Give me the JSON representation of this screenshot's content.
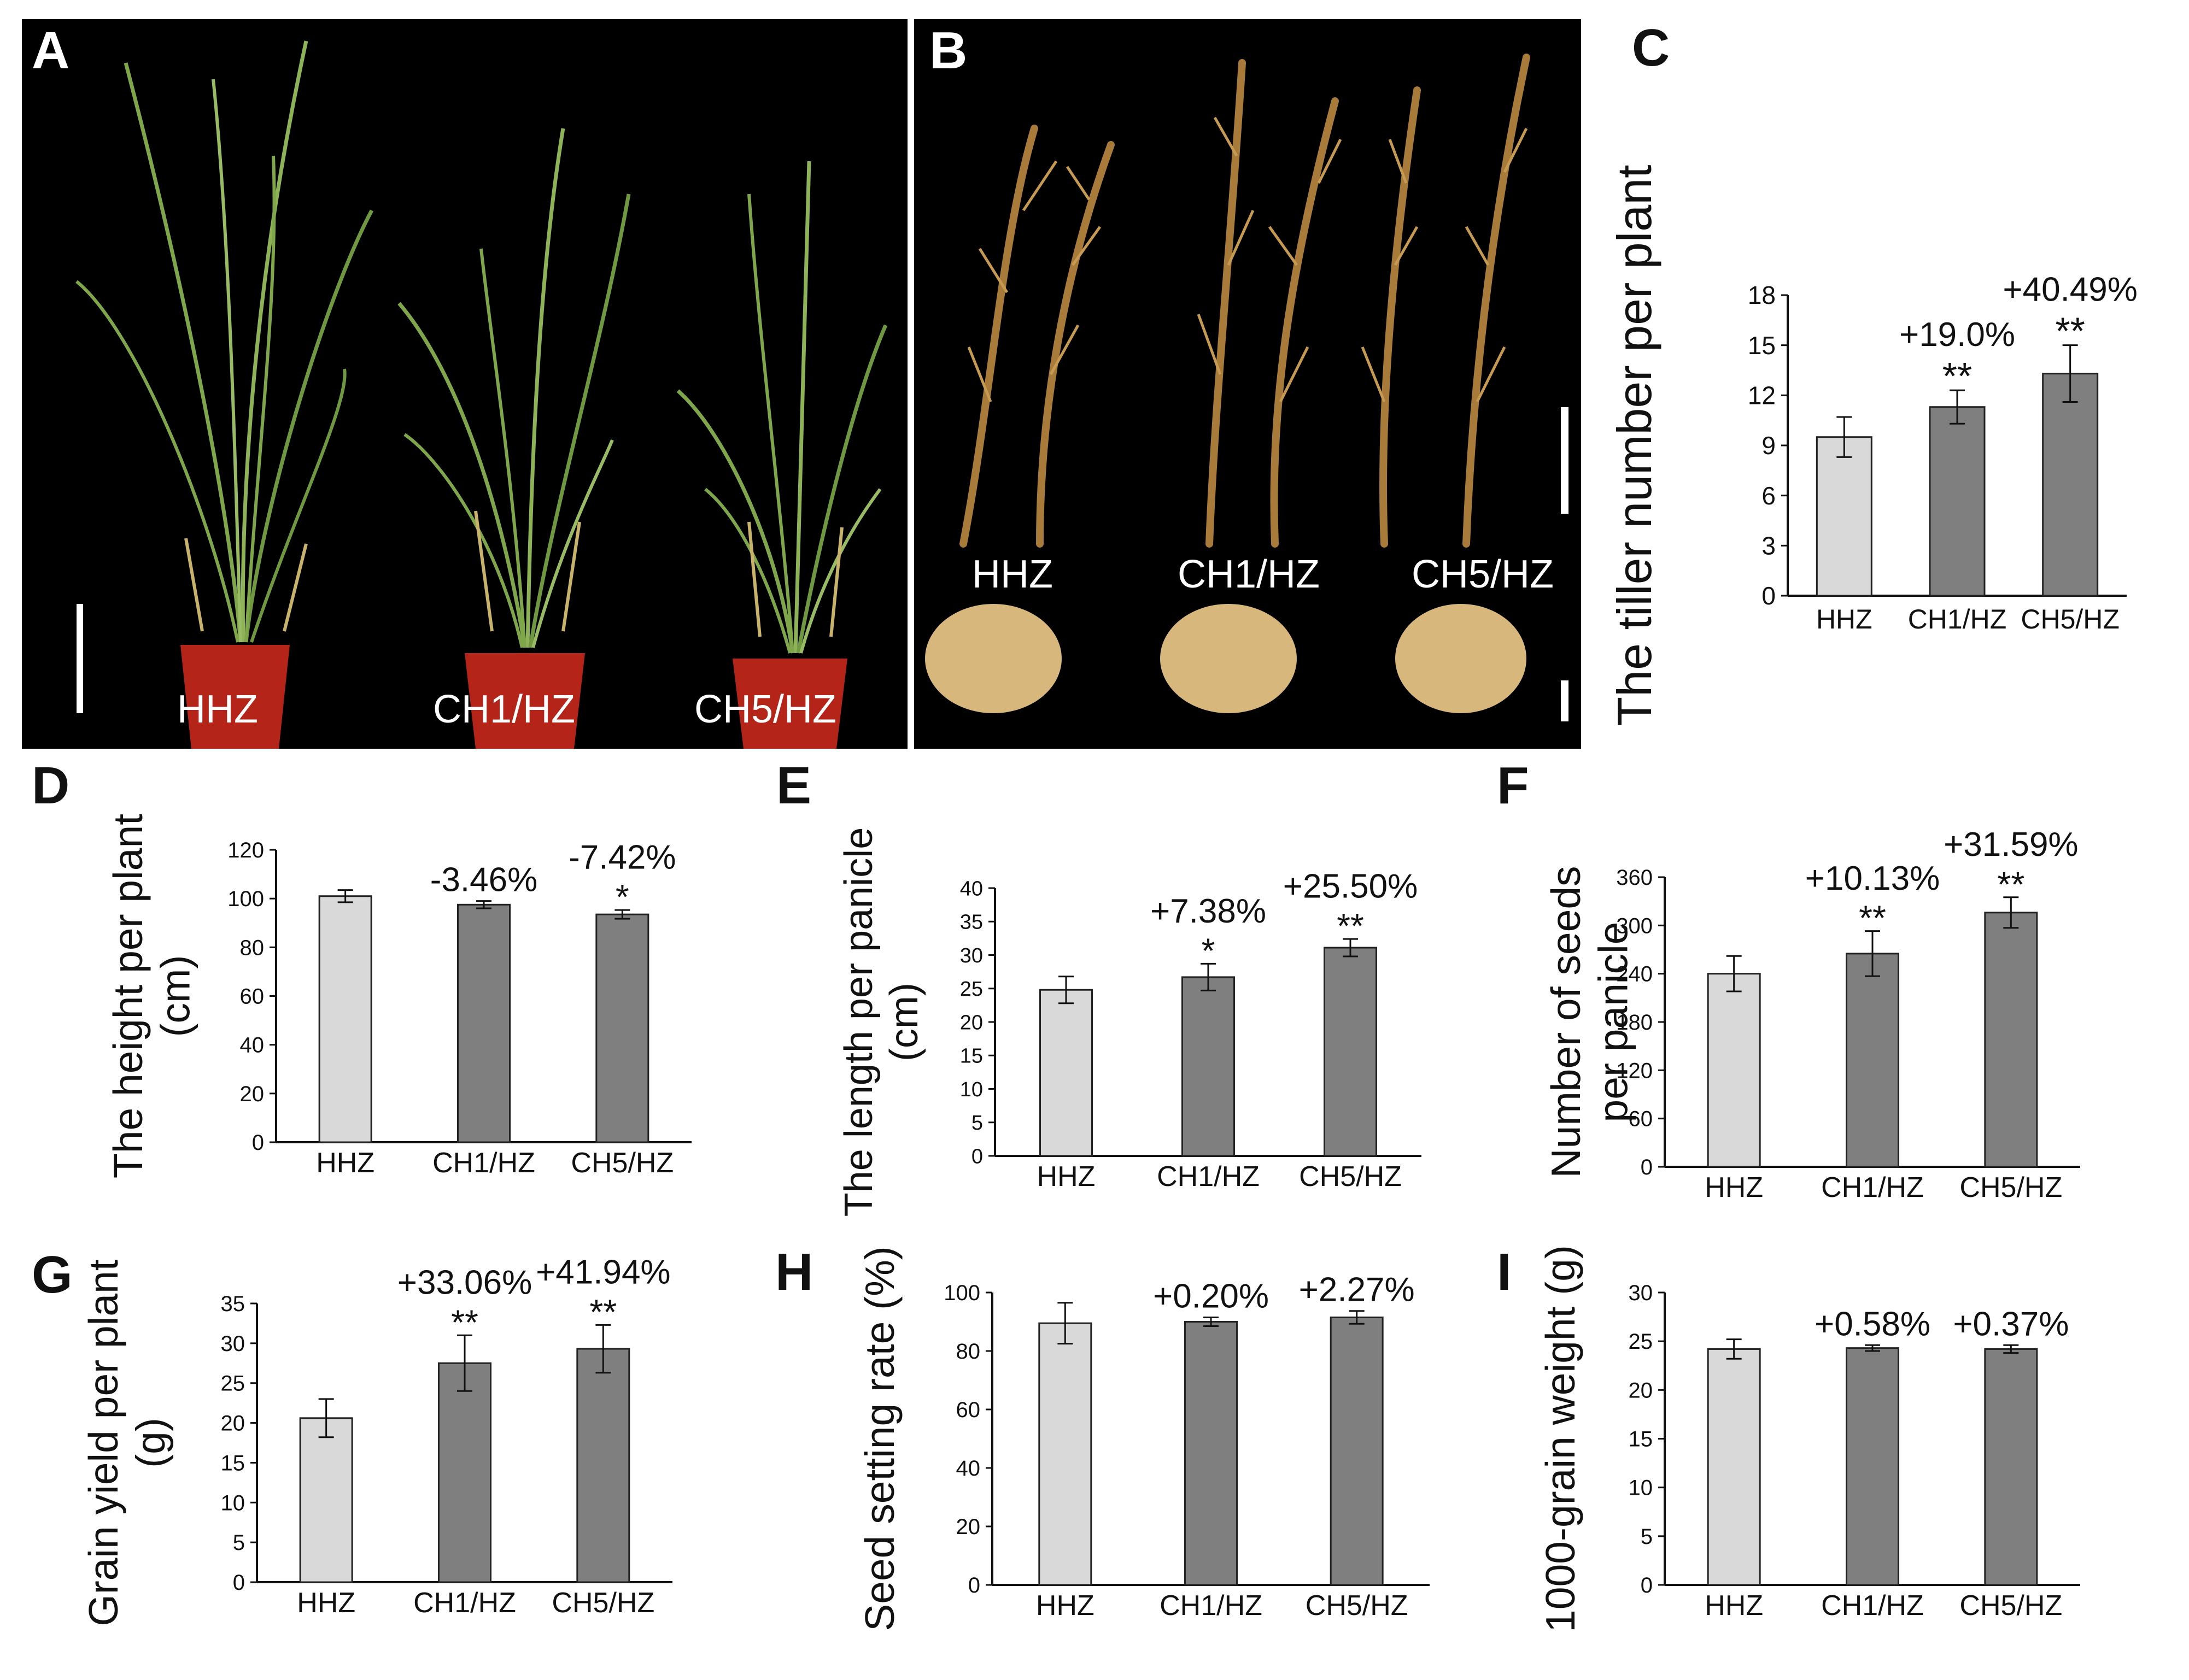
{
  "panels": {
    "A": {
      "letter": "A",
      "labels": [
        "HHZ",
        "CH1/HZ",
        "CH5/HZ"
      ]
    },
    "B": {
      "letter": "B",
      "labels": [
        "HHZ",
        "CH1/HZ",
        "CH5/HZ"
      ]
    }
  },
  "colors": {
    "hhz_bar": "#d9d9d9",
    "mutant_bar": "#7f7f7f",
    "photo_bg": "#000000",
    "pot": "#b42418",
    "leaf": "#7fa64a",
    "panicle": "#a87b3a",
    "grain": "#d8b77c"
  },
  "chart_data": [
    {
      "letter": "C",
      "type": "bar",
      "title": "",
      "xlabel": "",
      "ylabel": [
        "The tiller number per plant"
      ],
      "categories": [
        "HHZ",
        "CH1/HZ",
        "CH5/HZ"
      ],
      "values": [
        9.5,
        11.3,
        13.3
      ],
      "errors": [
        1.2,
        1.0,
        1.7
      ],
      "ylim": [
        0,
        18
      ],
      "yticks": [
        0,
        3,
        6,
        9,
        12,
        15,
        18
      ],
      "annotations": {
        "pct": [
          "",
          "+19.0%",
          "+40.49%"
        ],
        "sig": [
          "",
          "**",
          "**"
        ]
      }
    },
    {
      "letter": "D",
      "type": "bar",
      "title": "",
      "xlabel": "",
      "ylabel": [
        "The height per plant",
        "(cm)"
      ],
      "categories": [
        "HHZ",
        "CH1/HZ",
        "CH5/HZ"
      ],
      "values": [
        101,
        97.5,
        93.5
      ],
      "errors": [
        2.5,
        1.5,
        1.8
      ],
      "ylim": [
        0,
        120
      ],
      "yticks": [
        0,
        20,
        40,
        60,
        80,
        100,
        120
      ],
      "annotations": {
        "pct": [
          "",
          "-3.46%",
          "-7.42%"
        ],
        "sig": [
          "",
          "",
          "*"
        ]
      }
    },
    {
      "letter": "E",
      "type": "bar",
      "title": "",
      "xlabel": "",
      "ylabel": [
        "The length per panicle",
        "(cm)"
      ],
      "categories": [
        "HHZ",
        "CH1/HZ",
        "CH5/HZ"
      ],
      "values": [
        24.8,
        26.7,
        31.1
      ],
      "errors": [
        2.0,
        2.0,
        1.3
      ],
      "ylim": [
        0,
        40
      ],
      "yticks": [
        0,
        5,
        10,
        15,
        20,
        25,
        30,
        35,
        40
      ],
      "annotations": {
        "pct": [
          "",
          "+7.38%",
          "+25.50%"
        ],
        "sig": [
          "",
          "*",
          "**"
        ]
      }
    },
    {
      "letter": "F",
      "type": "bar",
      "title": "",
      "xlabel": "",
      "ylabel": [
        "Number of seeds",
        "per panicle"
      ],
      "categories": [
        "HHZ",
        "CH1/HZ",
        "CH5/HZ"
      ],
      "values": [
        240,
        265,
        316
      ],
      "errors": [
        22,
        28,
        19
      ],
      "ylim": [
        0,
        360
      ],
      "yticks": [
        0,
        60,
        120,
        180,
        240,
        300,
        360
      ],
      "annotations": {
        "pct": [
          "",
          "+10.13%",
          "+31.59%"
        ],
        "sig": [
          "",
          "**",
          "**"
        ]
      }
    },
    {
      "letter": "G",
      "type": "bar",
      "title": "",
      "xlabel": "",
      "ylabel": [
        "Grain yield per plant",
        "(g)"
      ],
      "categories": [
        "HHZ",
        "CH1/HZ",
        "CH5/HZ"
      ],
      "values": [
        20.6,
        27.5,
        29.3
      ],
      "errors": [
        2.4,
        3.5,
        3.0
      ],
      "ylim": [
        0,
        35
      ],
      "yticks": [
        0,
        5,
        10,
        15,
        20,
        25,
        30,
        35
      ],
      "annotations": {
        "pct": [
          "",
          "+33.06%",
          "+41.94%"
        ],
        "sig": [
          "",
          "**",
          "**"
        ]
      }
    },
    {
      "letter": "H",
      "type": "bar",
      "title": "",
      "xlabel": "",
      "ylabel": [
        "Seed setting rate (%)"
      ],
      "categories": [
        "HHZ",
        "CH1/HZ",
        "CH5/HZ"
      ],
      "values": [
        89.5,
        90,
        91.5
      ],
      "errors": [
        7,
        1.5,
        2.2
      ],
      "ylim": [
        0,
        100
      ],
      "yticks": [
        0,
        20,
        40,
        60,
        80,
        100
      ],
      "annotations": {
        "pct": [
          "",
          "+0.20%",
          "+2.27%"
        ],
        "sig": [
          "",
          "",
          ""
        ]
      }
    },
    {
      "letter": "I",
      "type": "bar",
      "title": "",
      "xlabel": "",
      "ylabel": [
        "1000-grain weight (g)"
      ],
      "categories": [
        "HHZ",
        "CH1/HZ",
        "CH5/HZ"
      ],
      "values": [
        24.2,
        24.3,
        24.2
      ],
      "errors": [
        1.0,
        0.3,
        0.4
      ],
      "ylim": [
        0,
        30
      ],
      "yticks": [
        0,
        5,
        10,
        15,
        20,
        25,
        30
      ],
      "annotations": {
        "pct": [
          "",
          "+0.58%",
          "+0.37%"
        ],
        "sig": [
          "",
          "",
          ""
        ]
      }
    }
  ]
}
